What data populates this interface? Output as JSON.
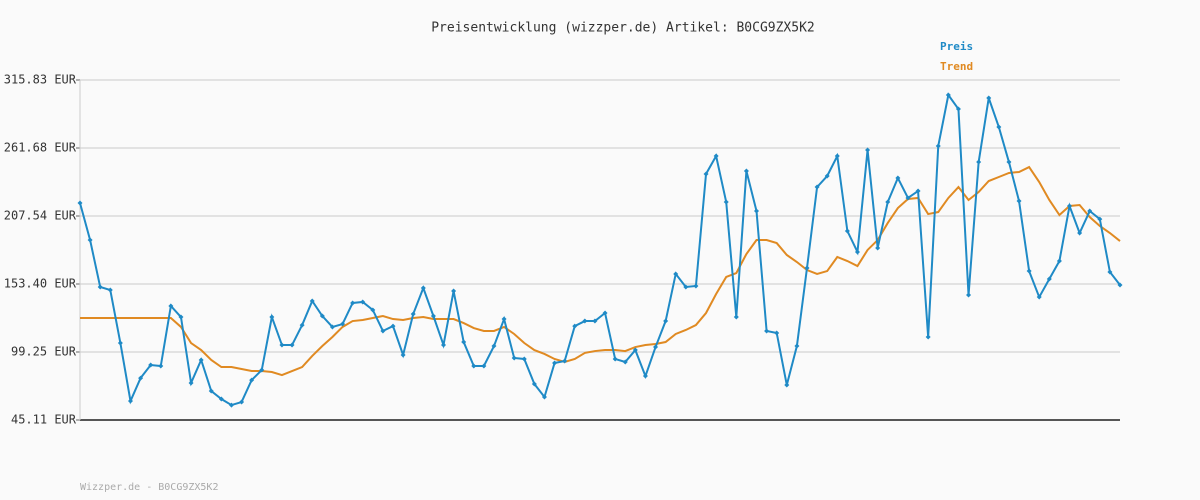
{
  "chart_data": {
    "type": "line",
    "title": "Preisentwicklung (wizzper.de) Artikel: B0CG9ZX5K2",
    "footer": "Wizzper.de - B0CG9ZX5K2",
    "ylim": [
      45.11,
      315.83
    ],
    "yticks": [
      {
        "value": 45.11,
        "label": "45.11 EUR"
      },
      {
        "value": 99.25,
        "label": "99.25 EUR"
      },
      {
        "value": 153.4,
        "label": "153.40 EUR"
      },
      {
        "value": 207.54,
        "label": "207.54 EUR"
      },
      {
        "value": 261.68,
        "label": "261.68 EUR"
      },
      {
        "value": 315.83,
        "label": "315.83 EUR"
      }
    ],
    "grid": true,
    "series": [
      {
        "name": "Preis",
        "color": "#1f8ac6",
        "markers": true,
        "values": [
          217.9,
          188.4,
          151.0,
          148.6,
          106.4,
          60.2,
          78.5,
          88.9,
          88.1,
          135.9,
          127.1,
          74.6,
          92.9,
          68.2,
          61.8,
          57.0,
          59.4,
          76.9,
          84.9,
          127.1,
          104.8,
          104.8,
          120.7,
          139.9,
          127.9,
          119.2,
          121.5,
          138.3,
          139.1,
          132.7,
          116.0,
          119.9,
          96.9,
          129.5,
          150.2,
          127.9,
          104.8,
          147.8,
          107.2,
          88.1,
          88.1,
          104.0,
          125.5,
          94.5,
          93.7,
          73.8,
          63.4,
          90.5,
          92.1,
          119.9,
          123.9,
          123.9,
          130.3,
          93.7,
          91.3,
          100.8,
          80.1,
          103.2,
          123.9,
          161.4,
          151.0,
          151.8,
          241.0,
          255.3,
          218.7,
          127.1,
          243.4,
          211.5,
          116.0,
          114.4,
          73.0,
          104.0,
          166.1,
          230.6,
          239.4,
          255.3,
          195.6,
          178.9,
          260.1,
          182.1,
          218.7,
          237.8,
          221.9,
          227.4,
          111.2,
          263.3,
          303.9,
          292.7,
          144.6,
          250.5,
          301.5,
          278.4,
          250.5,
          219.5,
          163.7,
          143.0,
          157.4,
          171.7,
          215.5,
          194.0,
          211.5,
          205.1,
          163.0,
          152.6
        ]
      },
      {
        "name": "Trend",
        "color": "#e08a22",
        "markers": false,
        "values": [
          126.3,
          126.3,
          126.3,
          126.3,
          126.3,
          126.3,
          126.3,
          126.3,
          126.3,
          126.3,
          119.2,
          106.4,
          100.8,
          92.9,
          87.3,
          87.3,
          85.7,
          84.1,
          84.1,
          83.3,
          80.9,
          84.1,
          87.3,
          96.1,
          104.0,
          111.2,
          119.2,
          123.9,
          124.7,
          126.3,
          127.9,
          125.5,
          124.7,
          126.3,
          127.1,
          125.5,
          125.5,
          125.5,
          122.3,
          118.3,
          116.0,
          116.0,
          119.2,
          113.6,
          106.4,
          100.8,
          97.7,
          93.7,
          91.3,
          93.7,
          98.5,
          100.0,
          100.8,
          100.8,
          100.0,
          103.2,
          104.8,
          105.6,
          107.2,
          113.6,
          116.8,
          120.7,
          130.3,
          145.4,
          159.0,
          162.1,
          177.3,
          188.4,
          188.4,
          186.0,
          176.5,
          170.9,
          164.5,
          161.4,
          163.7,
          174.9,
          171.7,
          167.7,
          180.5,
          188.4,
          202.0,
          213.9,
          221.1,
          221.9,
          209.1,
          210.7,
          221.9,
          230.6,
          220.3,
          226.6,
          235.4,
          238.6,
          241.8,
          242.6,
          246.5,
          234.6,
          220.3,
          208.3,
          215.5,
          216.3,
          206.7,
          199.6,
          194.0,
          187.6
        ]
      }
    ]
  }
}
